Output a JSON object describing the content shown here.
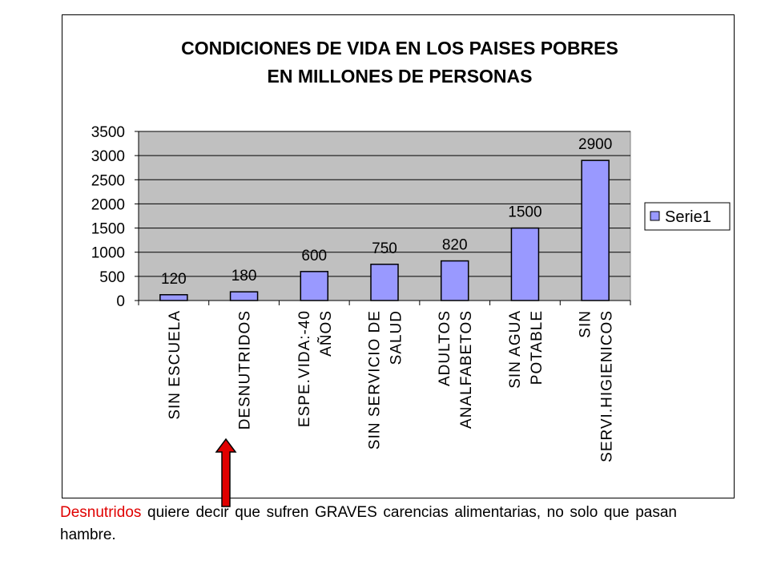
{
  "chart_data": {
    "type": "bar",
    "title": [
      "CONDICIONES DE VIDA EN LOS PAISES POBRES",
      "EN MILLONES DE PERSONAS"
    ],
    "categories": [
      [
        "SIN ESCUELA"
      ],
      [
        "DESNUTRIDOS"
      ],
      [
        "ESPE.VIDA:-40",
        "AÑOS"
      ],
      [
        "SIN SERVICIO DE",
        "SALUD"
      ],
      [
        "ADULTOS",
        "ANALFABETOS"
      ],
      [
        "SIN AGUA",
        "POTABLE"
      ],
      [
        "SIN",
        "SERVI.HIGIENICOS"
      ]
    ],
    "series": [
      {
        "name": "Serie1",
        "values": [
          120,
          180,
          600,
          750,
          820,
          1500,
          2900
        ]
      }
    ],
    "data_labels": [
      "120",
      "180",
      "600",
      "750",
      "820",
      "1500",
      "2900"
    ],
    "ylim": [
      0,
      3500
    ],
    "yticks": [
      0,
      500,
      1000,
      1500,
      2000,
      2500,
      3000,
      3500
    ],
    "grid": true,
    "legend_position": "right",
    "colors": {
      "bar": "#9999ff",
      "plot_background": "#c0c0c0",
      "arrow": "#e00000"
    }
  },
  "caption": {
    "highlight": "Desnutridos",
    "text": " quiere decir que sufren GRAVES carencias alimentarias, no solo que pasan hambre."
  }
}
